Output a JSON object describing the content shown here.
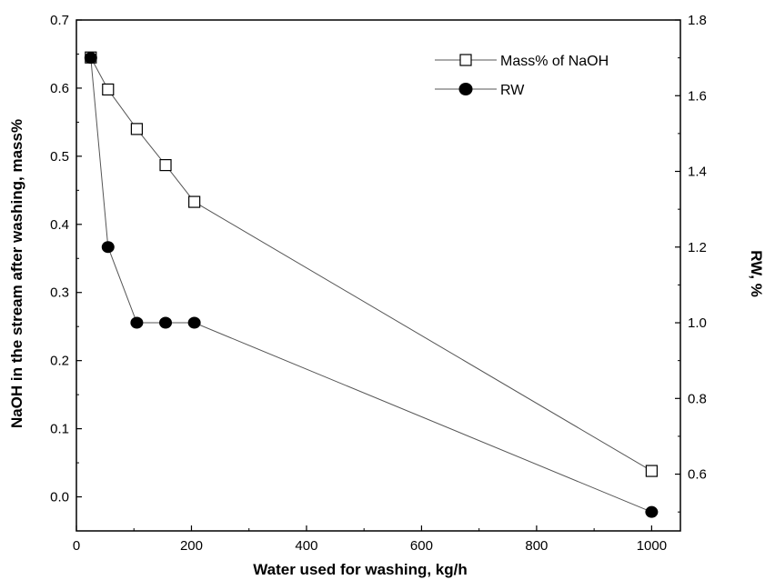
{
  "chart_data": {
    "type": "line",
    "x": [
      25,
      55,
      105,
      155,
      205,
      1000
    ],
    "series": [
      {
        "name": "Mass% of NaOH",
        "axis": "left",
        "marker": "open-square",
        "values": [
          0.645,
          0.598,
          0.54,
          0.487,
          0.433,
          0.038
        ]
      },
      {
        "name": "RW",
        "axis": "right",
        "marker": "filled-circle",
        "values": [
          1.7,
          1.2,
          1.0,
          1.0,
          1.0,
          0.5
        ]
      }
    ],
    "xlabel": "Water used for washing, kg/h",
    "ylabel": "NaOH in the stream after washing, mass%",
    "y2label": "RW, %",
    "xlim": [
      0,
      1050
    ],
    "ylim": [
      -0.05,
      0.7
    ],
    "y2lim": [
      0.45,
      1.8
    ],
    "xticks": [
      0,
      200,
      400,
      600,
      800,
      1000
    ],
    "yticks": [
      0.0,
      0.1,
      0.2,
      0.3,
      0.4,
      0.5,
      0.6,
      0.7
    ],
    "y2ticks": [
      0.6,
      0.8,
      1.0,
      1.2,
      1.4,
      1.6,
      1.8
    ],
    "grid": false,
    "legend": "top-right",
    "colors": {
      "line": "#555555",
      "marker_edge": "#000000",
      "square_fill": "#ffffff",
      "circle_fill": "#000000"
    }
  }
}
